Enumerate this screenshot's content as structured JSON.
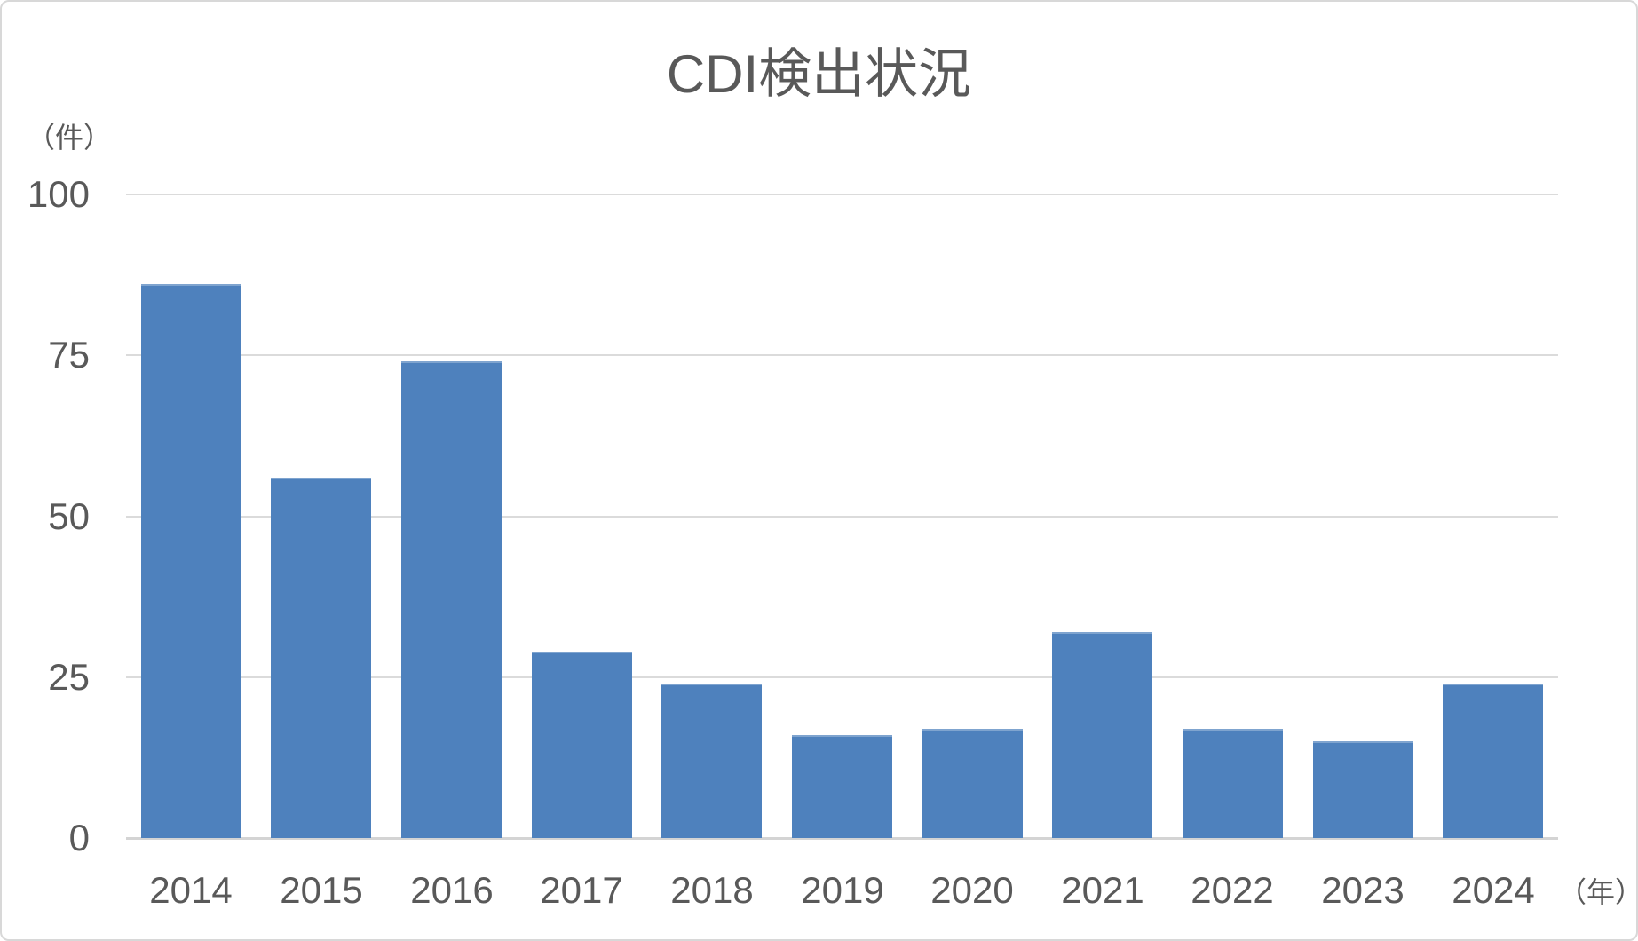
{
  "chart_data": {
    "type": "bar",
    "title": "CDI検出状況",
    "categories": [
      "2014",
      "2015",
      "2016",
      "2017",
      "2018",
      "2019",
      "2020",
      "2021",
      "2022",
      "2023",
      "2024"
    ],
    "values": [
      86,
      56,
      74,
      29,
      24,
      16,
      17,
      32,
      17,
      15,
      24
    ],
    "xlabel": "（年）",
    "ylabel": "（件）",
    "ylim": [
      0,
      100
    ],
    "yticks": [
      0,
      25,
      50,
      75,
      100
    ],
    "grid": true,
    "legend": false,
    "bar_color": "#4E81BD",
    "gridline_color": "#DBDBDB",
    "text_color": "#595959",
    "background_color": "#FFFFFF"
  }
}
